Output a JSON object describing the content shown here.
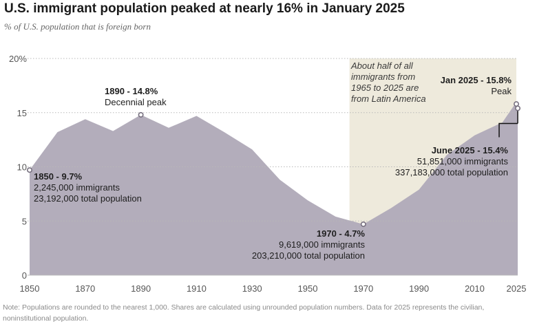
{
  "header": {
    "title": "U.S. immigrant population peaked at nearly 16% in January 2025",
    "subtitle": "% of U.S. population that is foreign born"
  },
  "footnote": "Note: Populations are rounded to the nearest 1,000. Shares are calculated using unrounded population numbers. Data for 2025 represents the civilian, noninstitutional population.",
  "chart_data": {
    "type": "area",
    "title": "U.S. immigrant population peaked at nearly 16% in January 2025",
    "subtitle": "% of U.S. population that is foreign born",
    "xlabel": "",
    "ylabel": "",
    "xlim": [
      1850,
      2025
    ],
    "ylim": [
      0,
      20
    ],
    "x_ticks": [
      1850,
      1870,
      1890,
      1910,
      1930,
      1950,
      1970,
      1990,
      2010,
      2025
    ],
    "y_ticks": [
      {
        "value": 0,
        "label": "0"
      },
      {
        "value": 5,
        "label": "5"
      },
      {
        "value": 10,
        "label": "10"
      },
      {
        "value": 15,
        "label": "15"
      },
      {
        "value": 20,
        "label": "20%"
      }
    ],
    "grid": "horizontal dotted",
    "colors": {
      "area": "#b3adbb",
      "shade": "#eeeadc",
      "marker_fill": "#ffffff",
      "marker_stroke": "#77707f",
      "grid": "#b8b8b8"
    },
    "series": [
      {
        "name": "",
        "points": [
          {
            "x": 1850,
            "y": 9.7
          },
          {
            "x": 1860,
            "y": 13.2
          },
          {
            "x": 1870,
            "y": 14.4
          },
          {
            "x": 1880,
            "y": 13.3
          },
          {
            "x": 1890,
            "y": 14.8
          },
          {
            "x": 1900,
            "y": 13.6
          },
          {
            "x": 1910,
            "y": 14.7
          },
          {
            "x": 1920,
            "y": 13.2
          },
          {
            "x": 1930,
            "y": 11.6
          },
          {
            "x": 1940,
            "y": 8.8
          },
          {
            "x": 1950,
            "y": 6.9
          },
          {
            "x": 1960,
            "y": 5.4
          },
          {
            "x": 1970,
            "y": 4.7
          },
          {
            "x": 1980,
            "y": 6.2
          },
          {
            "x": 1990,
            "y": 7.9
          },
          {
            "x": 2000,
            "y": 11.1
          },
          {
            "x": 2010,
            "y": 12.9
          },
          {
            "x": 2020,
            "y": 14.1
          },
          {
            "x": 2024,
            "y": 15.6
          },
          {
            "x": 2025,
            "y": 15.8
          },
          {
            "x": 2025.5,
            "y": 15.4
          }
        ]
      }
    ],
    "shaded_region": {
      "x_start": 1965,
      "x_end": 2025,
      "label_lines": [
        "About half of all",
        "immigrants from",
        "1965 to 2025 are",
        "from Latin America"
      ]
    },
    "annotations": [
      {
        "id": "1850",
        "x": 1850,
        "y": 9.7,
        "lines": [
          "1850 - 9.7%",
          "2,245,000 immigrants",
          "23,192,000 total population"
        ]
      },
      {
        "id": "1890",
        "x": 1890,
        "y": 14.8,
        "lines": [
          "1890 - 14.8%",
          "Decennial peak"
        ]
      },
      {
        "id": "1970",
        "x": 1970,
        "y": 4.7,
        "lines": [
          "1970 - 4.7%",
          "9,619,000 immigrants",
          "203,210,000 total population"
        ]
      },
      {
        "id": "jan2025",
        "x": 2025,
        "y": 15.8,
        "lines": [
          "Jan 2025 - 15.8%",
          "Peak"
        ]
      },
      {
        "id": "jun2025",
        "x": 2025.5,
        "y": 15.4,
        "lines": [
          "June 2025 - 15.4%",
          "51,851,000 immigrants",
          "337,183,000 total population"
        ]
      }
    ]
  }
}
